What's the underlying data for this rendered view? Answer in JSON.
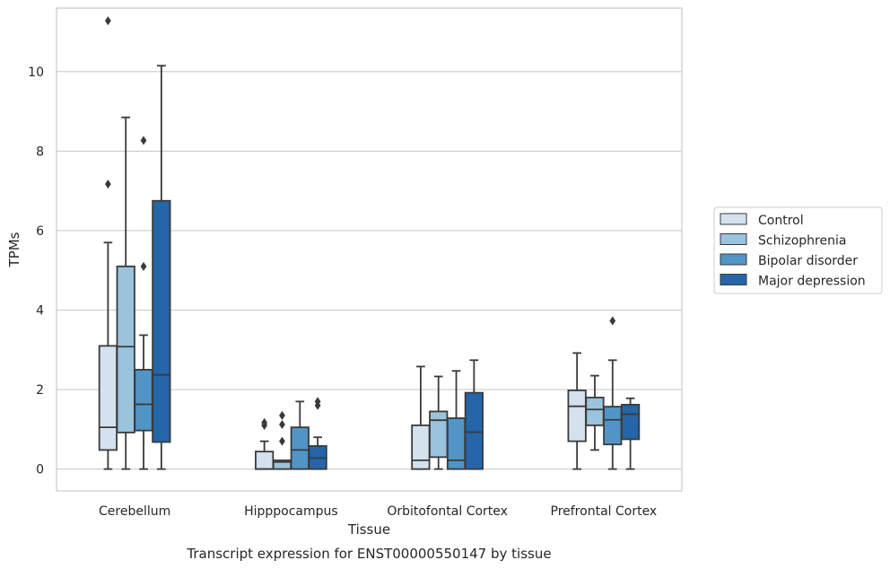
{
  "chart_data": {
    "type": "box",
    "xlabel": "Tissue",
    "ylabel": "TPMs",
    "caption": "Transcript expression for ENST00000550147 by tissue",
    "ylim": [
      -0.55,
      11.6
    ],
    "yticks": [
      0,
      2,
      4,
      6,
      8,
      10
    ],
    "grid": true,
    "legend_position": "right",
    "categories": [
      "Cerebellum",
      "Hipppocampus",
      "Orbitofontal Cortex",
      "Prefrontal Cortex"
    ],
    "series": [
      {
        "name": "Control",
        "color": "#d4e2f0",
        "boxes": [
          {
            "whisker_low": 0,
            "q1": 0.48,
            "median": 1.05,
            "q3": 3.1,
            "whisker_high": 5.7,
            "outliers": [
              7.17,
              11.28
            ]
          },
          {
            "whisker_low": 0,
            "q1": 0,
            "median": 0,
            "q3": 0.44,
            "whisker_high": 0.7,
            "outliers": [
              1.1,
              1.17
            ]
          },
          {
            "whisker_low": 0,
            "q1": 0,
            "median": 0.22,
            "q3": 1.1,
            "whisker_high": 2.58,
            "outliers": []
          },
          {
            "whisker_low": 0,
            "q1": 0.7,
            "median": 1.58,
            "q3": 1.98,
            "whisker_high": 2.92,
            "outliers": []
          }
        ]
      },
      {
        "name": "Schizophrenia",
        "color": "#9ac3dd",
        "boxes": [
          {
            "whisker_low": 0,
            "q1": 0.92,
            "median": 3.08,
            "q3": 5.1,
            "whisker_high": 8.85,
            "outliers": []
          },
          {
            "whisker_low": 0,
            "q1": 0,
            "median": 0.18,
            "q3": 0.22,
            "whisker_high": 0.22,
            "outliers": [
              0.7,
              1.12,
              1.35
            ]
          },
          {
            "whisker_low": 0,
            "q1": 0.3,
            "median": 1.23,
            "q3": 1.45,
            "whisker_high": 2.33,
            "outliers": []
          },
          {
            "whisker_low": 0.48,
            "q1": 1.1,
            "median": 1.5,
            "q3": 1.8,
            "whisker_high": 2.35,
            "outliers": []
          }
        ]
      },
      {
        "name": "Bipolar disorder",
        "color": "#5195c6",
        "boxes": [
          {
            "whisker_low": 0,
            "q1": 0.97,
            "median": 1.63,
            "q3": 2.5,
            "whisker_high": 3.37,
            "outliers": [
              5.1,
              8.27
            ]
          },
          {
            "whisker_low": 0,
            "q1": 0,
            "median": 0.48,
            "q3": 1.05,
            "whisker_high": 1.7,
            "outliers": []
          },
          {
            "whisker_low": 0,
            "q1": 0,
            "median": 0.22,
            "q3": 1.28,
            "whisker_high": 2.47,
            "outliers": []
          },
          {
            "whisker_low": 0,
            "q1": 0.62,
            "median": 1.24,
            "q3": 1.57,
            "whisker_high": 2.74,
            "outliers": [
              3.73
            ]
          }
        ]
      },
      {
        "name": "Major depression",
        "color": "#2466a9",
        "boxes": [
          {
            "whisker_low": 0,
            "q1": 0.68,
            "median": 2.37,
            "q3": 6.75,
            "whisker_high": 10.15,
            "outliers": []
          },
          {
            "whisker_low": 0,
            "q1": 0,
            "median": 0.28,
            "q3": 0.58,
            "whisker_high": 0.8,
            "outliers": [
              1.6,
              1.7
            ]
          },
          {
            "whisker_low": 0,
            "q1": 0,
            "median": 0.93,
            "q3": 1.92,
            "whisker_high": 2.74,
            "outliers": []
          },
          {
            "whisker_low": 0,
            "q1": 0.75,
            "median": 1.38,
            "q3": 1.62,
            "whisker_high": 1.78,
            "outliers": []
          }
        ]
      }
    ]
  }
}
